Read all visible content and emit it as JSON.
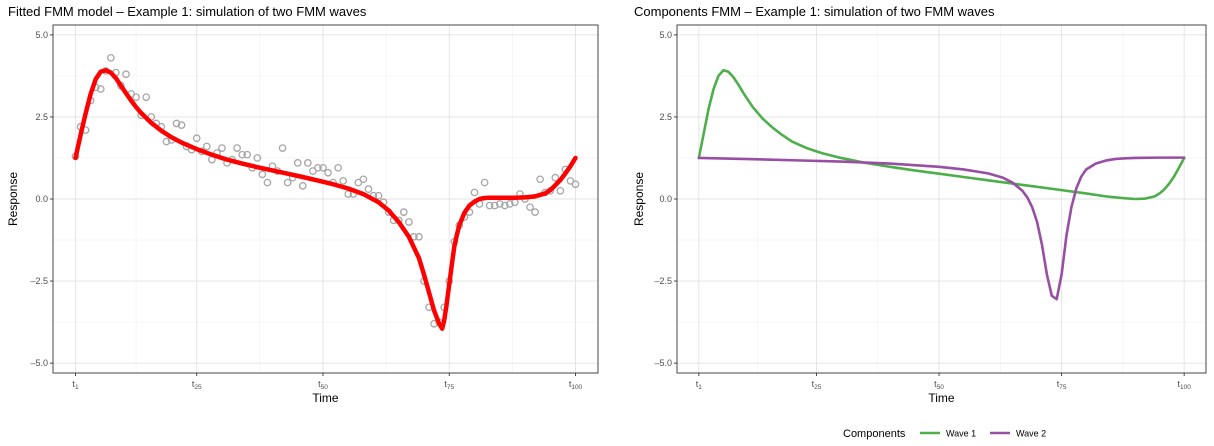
{
  "chart_data": [
    {
      "type": "scatter+line",
      "title": "Fitted FMM model – Example 1: simulation of two FMM waves",
      "xlabel": "Time",
      "ylabel": "Response",
      "xlim": [
        1,
        100
      ],
      "ylim": [
        -5.3,
        5.3
      ],
      "yticks": [
        5.0,
        2.5,
        0.0,
        -2.5,
        -5.0
      ],
      "ytick_labels": [
        "5.0",
        "2.5",
        "0.0",
        "–2.5",
        "–5.0"
      ],
      "xticks": [
        1,
        25,
        50,
        75,
        100
      ],
      "xtick_labels": [
        {
          "base": "t",
          "sub": "1"
        },
        {
          "base": "t",
          "sub": "25"
        },
        {
          "base": "t",
          "sub": "50"
        },
        {
          "base": "t",
          "sub": "75"
        },
        {
          "base": "t",
          "sub": "100"
        }
      ],
      "grid": true,
      "fitted_color": "#ff0000",
      "points_color": "#a6a6a6",
      "fitted": {
        "x": [
          1,
          2,
          3,
          4,
          5,
          6,
          7,
          8,
          9,
          10,
          11,
          12,
          13,
          14,
          16,
          18,
          20,
          22,
          25,
          28,
          31,
          34,
          37,
          40,
          43,
          46,
          49,
          52,
          55,
          58,
          61,
          63,
          65,
          67,
          69,
          70,
          71,
          72,
          73,
          73.6,
          74,
          74.4,
          75,
          75.6,
          76,
          76.5,
          77,
          78,
          79,
          80,
          81,
          82,
          83,
          84,
          86,
          88,
          90,
          92,
          94,
          95,
          96,
          97,
          98,
          99,
          100
        ],
        "y": [
          1.25,
          1.95,
          2.6,
          3.2,
          3.65,
          3.88,
          3.92,
          3.85,
          3.68,
          3.45,
          3.22,
          3.0,
          2.8,
          2.62,
          2.32,
          2.08,
          1.88,
          1.72,
          1.52,
          1.35,
          1.2,
          1.08,
          0.97,
          0.87,
          0.77,
          0.67,
          0.56,
          0.45,
          0.32,
          0.15,
          -0.1,
          -0.35,
          -0.7,
          -1.15,
          -1.8,
          -2.3,
          -2.85,
          -3.4,
          -3.8,
          -3.95,
          -3.7,
          -3.3,
          -2.6,
          -1.9,
          -1.45,
          -1.1,
          -0.8,
          -0.42,
          -0.2,
          -0.08,
          0.0,
          0.03,
          0.04,
          0.04,
          0.04,
          0.04,
          0.05,
          0.08,
          0.17,
          0.27,
          0.42,
          0.58,
          0.78,
          1.0,
          1.25
        ]
      },
      "observed": {
        "x": [
          1,
          2,
          3,
          4,
          5,
          6,
          7,
          8,
          9,
          10,
          11,
          12,
          13,
          14,
          15,
          16,
          17,
          18,
          19,
          20,
          21,
          22,
          23,
          24,
          25,
          26,
          27,
          28,
          29,
          30,
          31,
          32,
          33,
          34,
          35,
          36,
          37,
          38,
          39,
          40,
          41,
          42,
          43,
          44,
          45,
          46,
          47,
          48,
          49,
          50,
          51,
          52,
          53,
          54,
          55,
          56,
          57,
          58,
          59,
          60,
          61,
          62,
          63,
          64,
          65,
          66,
          67,
          68,
          69,
          70,
          71,
          72,
          73,
          74,
          75,
          76,
          77,
          78,
          79,
          80,
          81,
          82,
          83,
          84,
          85,
          86,
          87,
          88,
          89,
          90,
          91,
          92,
          93,
          94,
          95,
          96,
          97,
          98,
          99,
          100
        ],
        "y": [
          1.3,
          2.2,
          2.1,
          3.0,
          3.4,
          3.35,
          3.9,
          4.3,
          3.85,
          3.45,
          3.8,
          3.2,
          3.1,
          2.55,
          3.1,
          2.5,
          2.3,
          2.2,
          1.75,
          1.8,
          2.3,
          2.25,
          1.6,
          1.5,
          1.85,
          1.45,
          1.6,
          1.2,
          1.4,
          1.55,
          1.1,
          1.2,
          1.55,
          1.35,
          1.35,
          0.95,
          1.25,
          0.75,
          0.5,
          1.0,
          0.85,
          1.55,
          0.5,
          0.65,
          1.1,
          0.4,
          1.1,
          0.85,
          0.95,
          0.95,
          0.8,
          0.5,
          0.95,
          0.55,
          0.15,
          0.15,
          0.5,
          0.6,
          0.3,
          0.1,
          0.1,
          -0.1,
          -0.4,
          -0.65,
          -0.65,
          -0.4,
          -0.7,
          -1.15,
          -1.15,
          -2.5,
          -3.3,
          -3.8,
          -3.75,
          -3.3,
          -2.5,
          -1.3,
          -0.8,
          -0.55,
          -0.4,
          0.2,
          -0.15,
          0.5,
          -0.2,
          -0.2,
          -0.15,
          -0.2,
          -0.15,
          -0.1,
          0.15,
          0.0,
          -0.25,
          -0.4,
          0.6,
          0.2,
          0.25,
          0.65,
          0.25,
          0.9,
          0.55,
          0.45
        ]
      }
    },
    {
      "type": "line",
      "title": "Components FMM – Example 1: simulation of two FMM waves",
      "xlabel": "Time",
      "ylabel": "Response",
      "xlim": [
        1,
        100
      ],
      "ylim": [
        -5.3,
        5.3
      ],
      "yticks": [
        5.0,
        2.5,
        0.0,
        -2.5,
        -5.0
      ],
      "ytick_labels": [
        "5.0",
        "2.5",
        "0.0",
        "–2.5",
        "–5.0"
      ],
      "xticks": [
        1,
        25,
        50,
        75,
        100
      ],
      "xtick_labels": [
        {
          "base": "t",
          "sub": "1"
        },
        {
          "base": "t",
          "sub": "25"
        },
        {
          "base": "t",
          "sub": "50"
        },
        {
          "base": "t",
          "sub": "75"
        },
        {
          "base": "t",
          "sub": "100"
        }
      ],
      "grid": true,
      "legend": {
        "position": "bottom",
        "title": "Components",
        "entries": [
          "Wave 1",
          "Wave 2"
        ]
      },
      "series": [
        {
          "name": "Wave 1",
          "color": "#4daf4a",
          "x": [
            1,
            2,
            3,
            4,
            5,
            6,
            7,
            8,
            9,
            10,
            11,
            12,
            14,
            16,
            18,
            20,
            23,
            26,
            30,
            35,
            40,
            45,
            50,
            55,
            60,
            65,
            70,
            75,
            80,
            84,
            88,
            90,
            92,
            94,
            95,
            96,
            97,
            98,
            99,
            100
          ],
          "y": [
            1.25,
            2.0,
            2.75,
            3.35,
            3.75,
            3.92,
            3.88,
            3.72,
            3.5,
            3.25,
            3.02,
            2.8,
            2.45,
            2.18,
            1.95,
            1.75,
            1.55,
            1.4,
            1.25,
            1.1,
            0.98,
            0.87,
            0.77,
            0.67,
            0.57,
            0.47,
            0.37,
            0.27,
            0.17,
            0.08,
            0.02,
            0.0,
            0.01,
            0.08,
            0.17,
            0.3,
            0.48,
            0.7,
            0.97,
            1.25
          ]
        },
        {
          "name": "Wave 2",
          "color": "#984ea3",
          "x": [
            1,
            10,
            20,
            30,
            40,
            50,
            55,
            60,
            63,
            65,
            67,
            68,
            69,
            70,
            71,
            72,
            73,
            74,
            75,
            76,
            77,
            78,
            79,
            80,
            82,
            84,
            86,
            88,
            90,
            95,
            100
          ],
          "y": [
            1.25,
            1.22,
            1.18,
            1.14,
            1.08,
            0.98,
            0.9,
            0.78,
            0.65,
            0.5,
            0.25,
            0.05,
            -0.25,
            -0.7,
            -1.4,
            -2.3,
            -2.95,
            -3.05,
            -2.3,
            -1.1,
            -0.25,
            0.32,
            0.68,
            0.9,
            1.08,
            1.17,
            1.22,
            1.24,
            1.25,
            1.26,
            1.26
          ]
        }
      ]
    }
  ]
}
